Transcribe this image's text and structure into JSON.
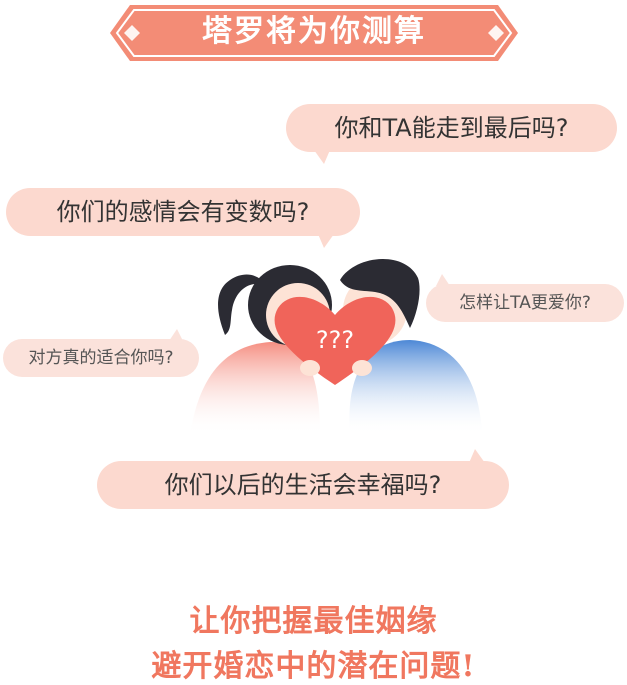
{
  "banner": {
    "title": "塔罗将为你测算"
  },
  "questions": [
    "你和TA能走到最后吗?",
    "你们的感情会有变数吗?",
    "怎样让TA更爱你?",
    "对方真的适合你吗?",
    "你们以后的生活会幸福吗?"
  ],
  "illustration": {
    "heart_text": "???"
  },
  "slogans": [
    "让你把握最佳姻缘",
    "避开婚恋中的潜在问题!"
  ],
  "colors": {
    "accent": "#f0775f",
    "banner": "#f38c76",
    "bubble": "#fcd9cf"
  }
}
